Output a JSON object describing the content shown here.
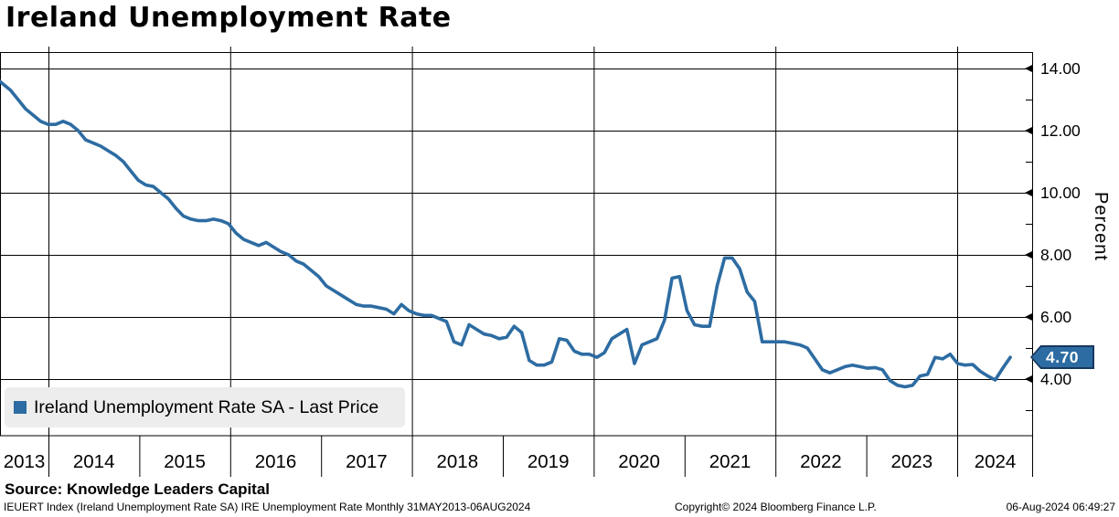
{
  "title": "Ireland Unemployment Rate",
  "source_line": "Source: Knowledge Leaders Capital",
  "footer": {
    "left": "IEUERT Index (Ireland Unemployment Rate SA) IRE Unemployment Rate  Monthly 31MAY2013-06AUG2024",
    "center": "Copyright© 2024 Bloomberg Finance L.P.",
    "right": "06-Aug-2024 06:49:27"
  },
  "legend": {
    "label": "Ireland Unemployment Rate SA - Last Price",
    "swatch_color": "#2d6ca2"
  },
  "last_price": {
    "value": "4.70",
    "box_color": "#2d6ca2",
    "border_color": "#17375e"
  },
  "colors": {
    "line": "#2d6ca2",
    "grid": "#000000",
    "legend_bg": "#ededed"
  },
  "y_axis": {
    "title": "Percent",
    "major_tick_labels": [
      "14.00",
      "12.00",
      "10.00",
      "8.00",
      "6.00",
      "4.00"
    ],
    "major_tick_values": [
      14,
      12,
      10,
      8,
      6,
      4
    ],
    "minor_tick_values": [
      13,
      11,
      9,
      7,
      5,
      3
    ]
  },
  "x_axis": {
    "year_labels": [
      "2013",
      "2014",
      "2015",
      "2016",
      "2017",
      "2018",
      "2019",
      "2020",
      "2021",
      "2022",
      "2023",
      "2024"
    ]
  },
  "chart_data": {
    "type": "line",
    "title": "Ireland Unemployment Rate",
    "series_name": "Ireland Unemployment Rate SA - Last Price",
    "unit": "Percent",
    "frequency": "monthly",
    "start": "2013-05",
    "end": "2024-08",
    "ylim_visible": [
      2.2,
      14.5
    ],
    "grid": "on",
    "legend_position": "bottom-left-inside",
    "last_price": 4.7,
    "values": [
      13.7,
      13.5,
      13.3,
      13.0,
      12.7,
      12.5,
      12.3,
      12.2,
      12.2,
      12.3,
      12.2,
      12.0,
      11.7,
      11.6,
      11.5,
      11.35,
      11.2,
      11.0,
      10.7,
      10.4,
      10.25,
      10.2,
      10.0,
      9.8,
      9.5,
      9.25,
      9.15,
      9.1,
      9.1,
      9.15,
      9.1,
      9.0,
      8.7,
      8.5,
      8.4,
      8.3,
      8.4,
      8.25,
      8.1,
      8.0,
      7.8,
      7.7,
      7.5,
      7.3,
      7.0,
      6.85,
      6.7,
      6.55,
      6.4,
      6.35,
      6.35,
      6.3,
      6.25,
      6.1,
      6.4,
      6.2,
      6.1,
      6.05,
      6.05,
      5.95,
      5.85,
      5.2,
      5.1,
      5.75,
      5.6,
      5.45,
      5.4,
      5.3,
      5.35,
      5.7,
      5.5,
      4.6,
      4.45,
      4.45,
      4.55,
      5.3,
      5.25,
      4.9,
      4.8,
      4.8,
      4.7,
      4.85,
      5.3,
      5.45,
      5.6,
      4.5,
      5.1,
      5.2,
      5.3,
      5.9,
      7.25,
      7.3,
      6.2,
      5.75,
      5.7,
      5.7,
      7.0,
      7.9,
      7.9,
      7.55,
      6.8,
      6.5,
      5.2,
      5.2,
      5.2,
      5.2,
      5.15,
      5.1,
      5.0,
      4.65,
      4.3,
      4.2,
      4.3,
      4.4,
      4.45,
      4.4,
      4.35,
      4.37,
      4.3,
      3.95,
      3.8,
      3.75,
      3.8,
      4.1,
      4.15,
      4.7,
      4.65,
      4.8,
      4.5,
      4.45,
      4.47,
      4.25,
      4.1,
      3.97,
      4.35,
      4.7
    ]
  }
}
